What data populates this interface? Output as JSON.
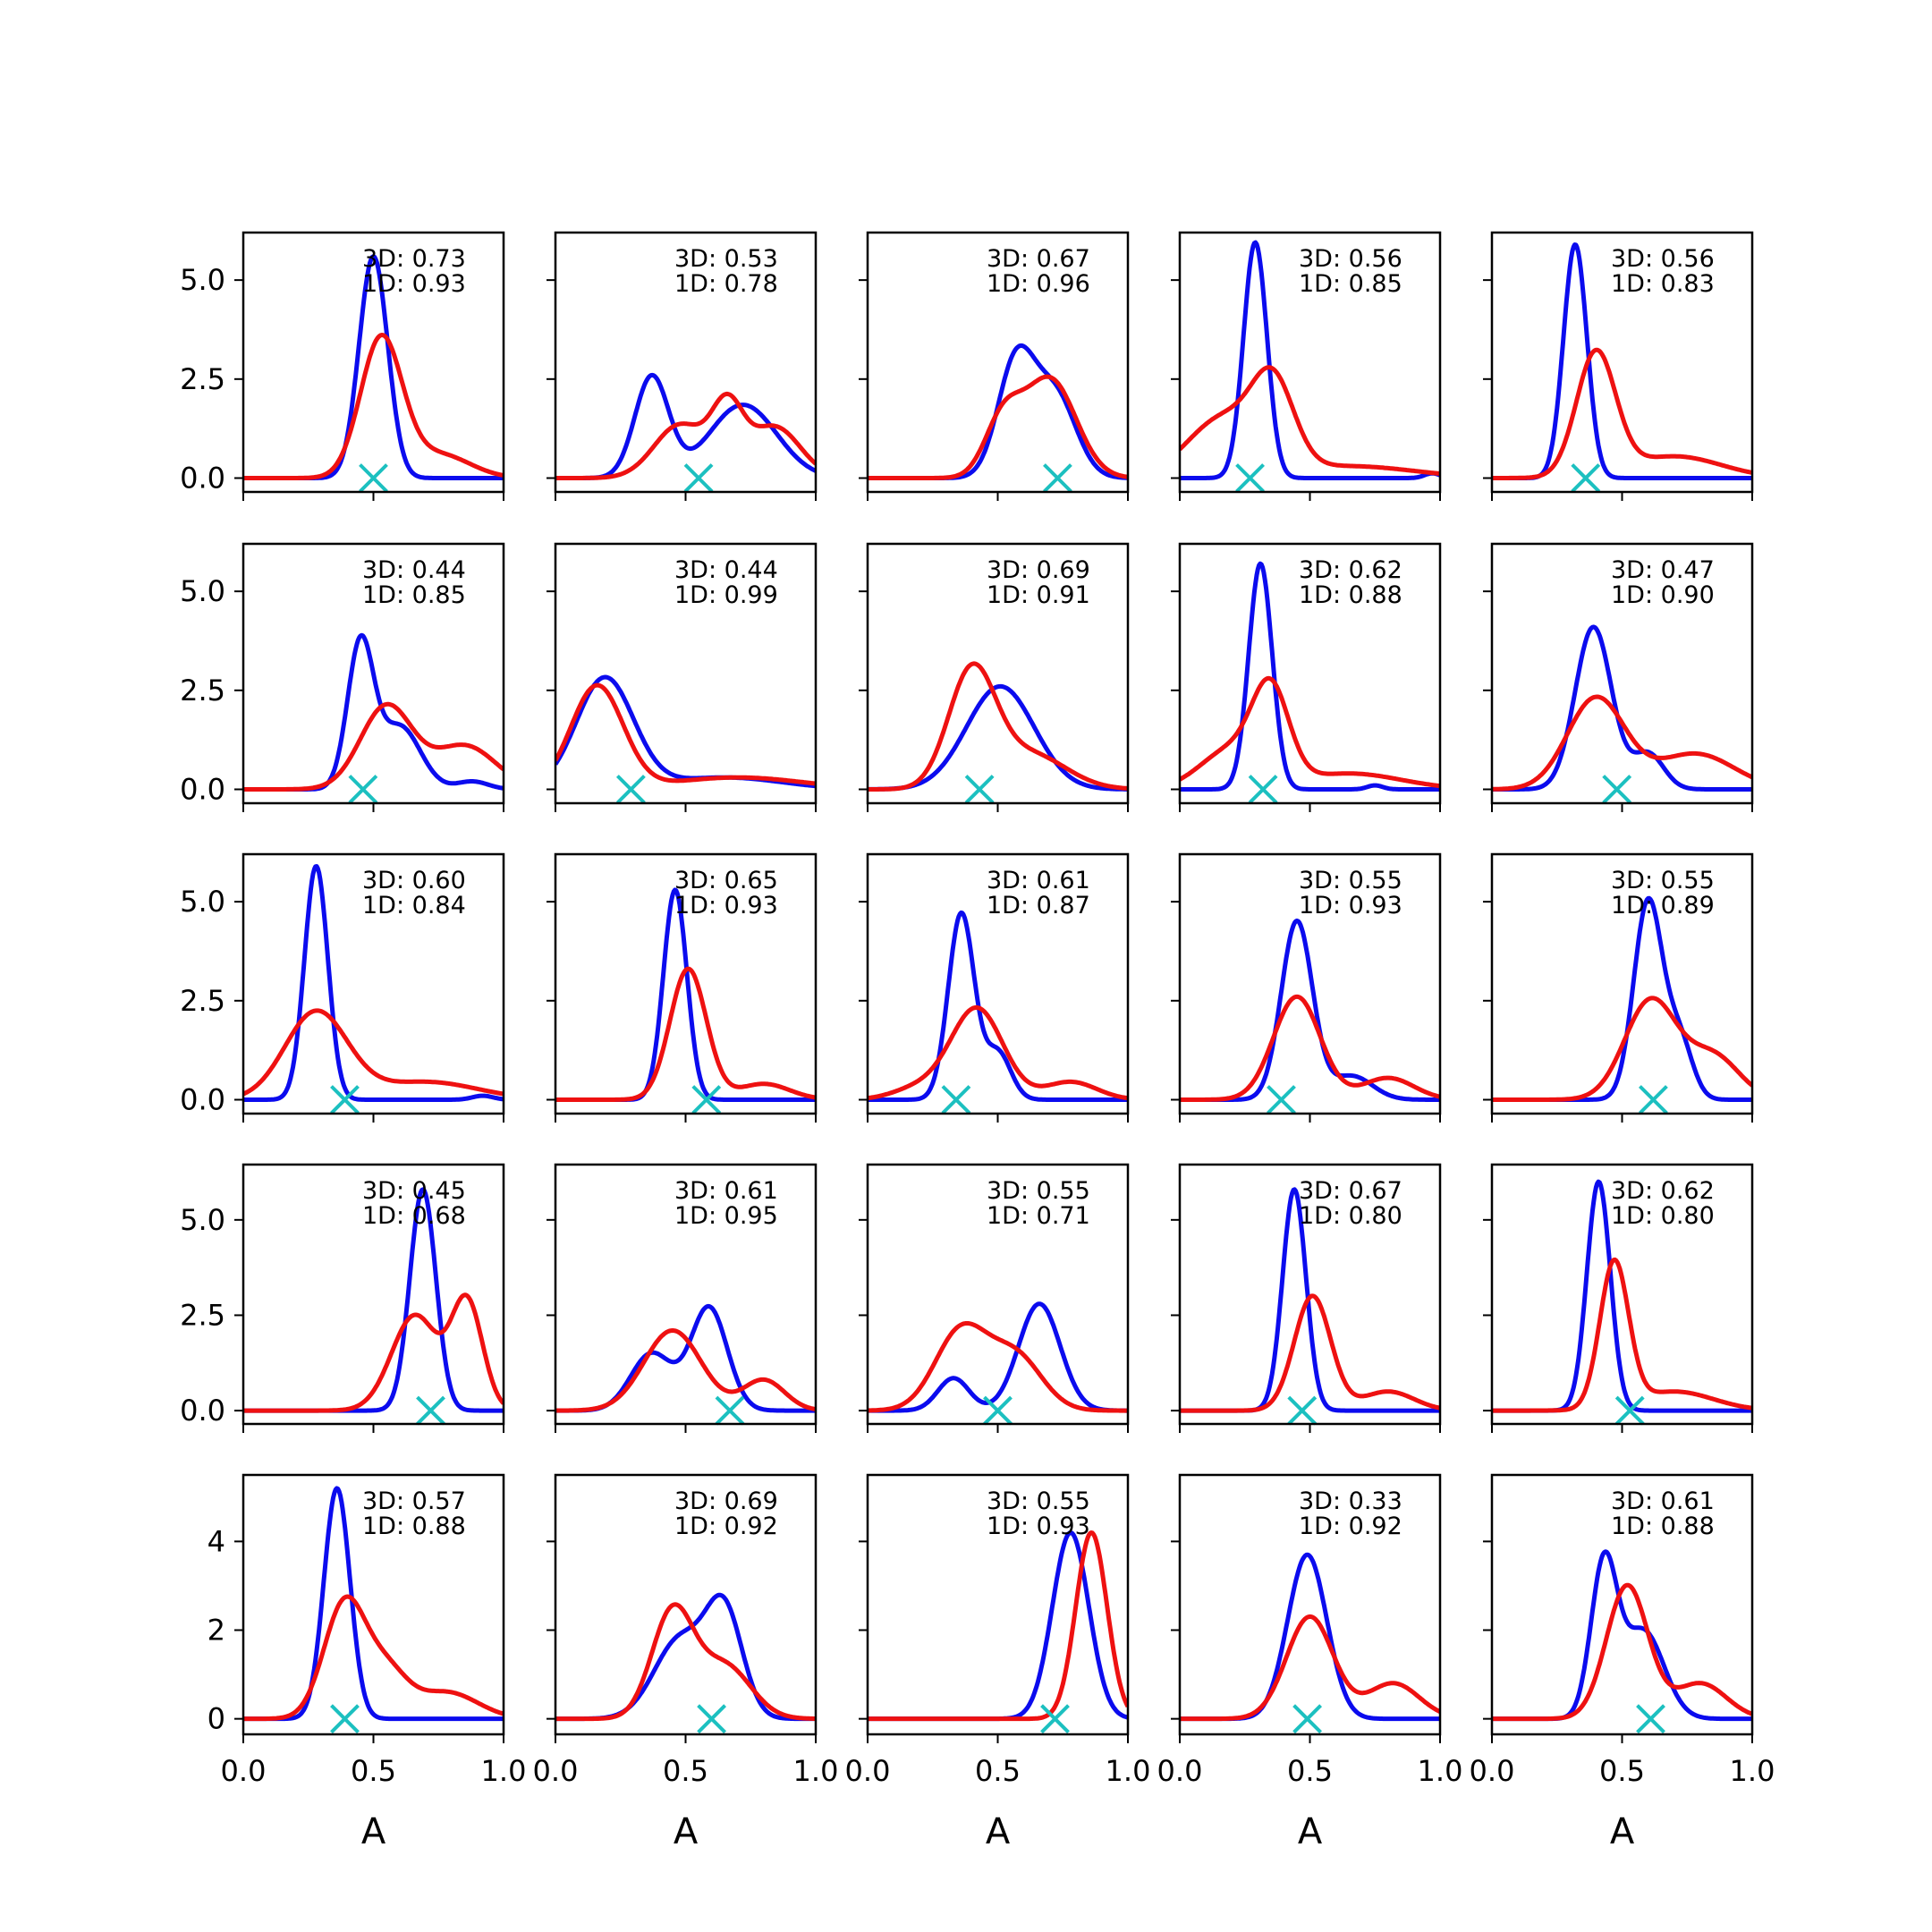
{
  "chart_data": {
    "type": "line",
    "layout": "5x5 grid of small density plots",
    "xlabel": "A",
    "xlim": [
      0.0,
      1.0
    ],
    "xticks": [
      "0.0",
      "0.5",
      "1.0"
    ],
    "row_ylims": [
      [
        -0.35,
        6.2
      ],
      [
        -0.35,
        6.2
      ],
      [
        -0.35,
        6.2
      ],
      [
        -0.35,
        6.45
      ],
      [
        -0.35,
        5.5
      ]
    ],
    "row_yticks": [
      {
        "values": [
          0.0,
          2.5,
          5.0
        ],
        "labels": [
          "0.0",
          "2.5",
          "5.0"
        ]
      },
      {
        "values": [
          0.0,
          2.5,
          5.0
        ],
        "labels": [
          "0.0",
          "2.5",
          "5.0"
        ]
      },
      {
        "values": [
          0.0,
          2.5,
          5.0
        ],
        "labels": [
          "0.0",
          "2.5",
          "5.0"
        ]
      },
      {
        "values": [
          0.0,
          2.5,
          5.0
        ],
        "labels": [
          "0.0",
          "2.5",
          "5.0"
        ]
      },
      {
        "values": [
          0,
          2,
          4
        ],
        "labels": [
          "0",
          "2",
          "4"
        ]
      }
    ],
    "colors": {
      "blue": "#0b0bee",
      "red": "#ee1111",
      "marker": "#1cc0c0"
    },
    "panels": [
      {
        "label3d": "3D: 0.73",
        "label1d": "1D: 0.93",
        "marker": 0.5,
        "blue": {
          "peaks": [
            [
              0.5,
              5.6,
              0.055
            ]
          ]
        },
        "red": {
          "peaks": [
            [
              0.53,
              3.5,
              0.08
            ],
            [
              0.75,
              0.6,
              0.12
            ]
          ]
        }
      },
      {
        "label3d": "3D: 0.53",
        "label1d": "1D: 0.78",
        "marker": 0.55,
        "blue": {
          "peaks": [
            [
              0.37,
              2.55,
              0.065
            ],
            [
              0.72,
              1.85,
              0.13
            ]
          ]
        },
        "red": {
          "peaks": [
            [
              0.48,
              1.35,
              0.1
            ],
            [
              0.66,
              1.6,
              0.06
            ],
            [
              0.84,
              1.3,
              0.1
            ]
          ]
        }
      },
      {
        "label3d": "3D: 0.67",
        "label1d": "1D: 0.96",
        "marker": 0.73,
        "blue": {
          "peaks": [
            [
              0.57,
              2.9,
              0.07
            ],
            [
              0.72,
              2.1,
              0.08
            ]
          ]
        },
        "red": {
          "peaks": [
            [
              0.52,
              1.4,
              0.07
            ],
            [
              0.7,
              2.5,
              0.1
            ]
          ]
        }
      },
      {
        "label3d": "3D: 0.56",
        "label1d": "1D: 0.85",
        "marker": 0.27,
        "blue": {
          "peaks": [
            [
              0.29,
              5.95,
              0.045
            ],
            [
              0.97,
              0.12,
              0.03
            ]
          ]
        },
        "red": {
          "peaks": [
            [
              0.17,
              1.5,
              0.14
            ],
            [
              0.36,
              2.0,
              0.08
            ],
            [
              0.65,
              0.3,
              0.25
            ]
          ]
        }
      },
      {
        "label3d": "3D: 0.56",
        "label1d": "1D: 0.83",
        "marker": 0.36,
        "blue": {
          "peaks": [
            [
              0.32,
              5.9,
              0.045
            ]
          ]
        },
        "red": {
          "peaks": [
            [
              0.4,
              3.1,
              0.075
            ],
            [
              0.7,
              0.55,
              0.18
            ]
          ]
        }
      },
      {
        "label3d": "3D: 0.44",
        "label1d": "1D: 0.85",
        "marker": 0.46,
        "blue": {
          "peaks": [
            [
              0.45,
              3.6,
              0.05
            ],
            [
              0.6,
              1.6,
              0.08
            ],
            [
              0.88,
              0.2,
              0.06
            ]
          ]
        },
        "red": {
          "peaks": [
            [
              0.55,
              2.1,
              0.1
            ],
            [
              0.85,
              1.1,
              0.12
            ]
          ]
        }
      },
      {
        "label3d": "3D: 0.44",
        "label1d": "1D: 0.99",
        "marker": 0.29,
        "blue": {
          "peaks": [
            [
              0.19,
              2.8,
              0.11
            ],
            [
              0.65,
              0.3,
              0.22
            ]
          ]
        },
        "red": {
          "peaks": [
            [
              0.16,
              2.6,
              0.1
            ],
            [
              0.7,
              0.3,
              0.25
            ]
          ]
        }
      },
      {
        "label3d": "3D: 0.69",
        "label1d": "1D: 0.91",
        "marker": 0.43,
        "blue": {
          "peaks": [
            [
              0.51,
              2.6,
              0.13
            ]
          ]
        },
        "red": {
          "peaks": [
            [
              0.4,
              2.9,
              0.09
            ],
            [
              0.62,
              0.9,
              0.14
            ]
          ]
        }
      },
      {
        "label3d": "3D: 0.62",
        "label1d": "1D: 0.88",
        "marker": 0.32,
        "blue": {
          "peaks": [
            [
              0.31,
              5.7,
              0.045
            ],
            [
              0.75,
              0.1,
              0.03
            ]
          ]
        },
        "red": {
          "peaks": [
            [
              0.2,
              1.0,
              0.12
            ],
            [
              0.35,
              2.2,
              0.07
            ],
            [
              0.65,
              0.4,
              0.2
            ]
          ]
        }
      },
      {
        "label3d": "3D: 0.47",
        "label1d": "1D: 0.90",
        "marker": 0.48,
        "blue": {
          "peaks": [
            [
              0.39,
              4.1,
              0.07
            ],
            [
              0.6,
              0.9,
              0.06
            ]
          ]
        },
        "red": {
          "peaks": [
            [
              0.4,
              2.3,
              0.11
            ],
            [
              0.78,
              0.9,
              0.15
            ]
          ]
        }
      },
      {
        "label3d": "3D: 0.60",
        "label1d": "1D: 0.84",
        "marker": 0.39,
        "blue": {
          "peaks": [
            [
              0.28,
              5.9,
              0.045
            ],
            [
              0.92,
              0.1,
              0.04
            ]
          ]
        },
        "red": {
          "peaks": [
            [
              0.28,
              2.2,
              0.12
            ],
            [
              0.7,
              0.45,
              0.2
            ]
          ]
        }
      },
      {
        "label3d": "3D: 0.65",
        "label1d": "1D: 0.93",
        "marker": 0.58,
        "blue": {
          "peaks": [
            [
              0.46,
              5.3,
              0.045
            ]
          ]
        },
        "red": {
          "peaks": [
            [
              0.51,
              3.3,
              0.07
            ],
            [
              0.8,
              0.4,
              0.1
            ]
          ]
        }
      },
      {
        "label3d": "3D: 0.61",
        "label1d": "1D: 0.87",
        "marker": 0.34,
        "blue": {
          "peaks": [
            [
              0.36,
              4.7,
              0.05
            ],
            [
              0.5,
              1.2,
              0.05
            ]
          ]
        },
        "red": {
          "peaks": [
            [
              0.2,
              0.3,
              0.1
            ],
            [
              0.42,
              2.3,
              0.1
            ],
            [
              0.78,
              0.45,
              0.1
            ]
          ]
        }
      },
      {
        "label3d": "3D: 0.55",
        "label1d": "1D: 0.93",
        "marker": 0.39,
        "blue": {
          "peaks": [
            [
              0.45,
              4.5,
              0.06
            ],
            [
              0.66,
              0.6,
              0.08
            ]
          ]
        },
        "red": {
          "peaks": [
            [
              0.45,
              2.6,
              0.09
            ],
            [
              0.8,
              0.55,
              0.1
            ]
          ]
        }
      },
      {
        "label3d": "3D: 0.55",
        "label1d": "1D: 0.89",
        "marker": 0.62,
        "blue": {
          "peaks": [
            [
              0.6,
              5.0,
              0.055
            ],
            [
              0.72,
              1.5,
              0.05
            ]
          ]
        },
        "red": {
          "peaks": [
            [
              0.61,
              2.5,
              0.1
            ],
            [
              0.85,
              1.1,
              0.1
            ]
          ]
        }
      },
      {
        "label3d": "3D: 0.45",
        "label1d": "1D: 0.68",
        "marker": 0.72,
        "blue": {
          "peaks": [
            [
              0.69,
              5.8,
              0.05
            ]
          ]
        },
        "red": {
          "peaks": [
            [
              0.66,
              2.5,
              0.09
            ],
            [
              0.86,
              2.8,
              0.06
            ]
          ]
        }
      },
      {
        "label3d": "3D: 0.61",
        "label1d": "1D: 0.95",
        "marker": 0.67,
        "blue": {
          "peaks": [
            [
              0.37,
              1.5,
              0.08
            ],
            [
              0.59,
              2.7,
              0.07
            ]
          ]
        },
        "red": {
          "peaks": [
            [
              0.45,
              2.1,
              0.11
            ],
            [
              0.8,
              0.8,
              0.08
            ]
          ]
        }
      },
      {
        "label3d": "3D: 0.55",
        "label1d": "1D: 0.71",
        "marker": 0.5,
        "blue": {
          "peaks": [
            [
              0.33,
              0.85,
              0.06
            ],
            [
              0.66,
              2.8,
              0.08
            ]
          ]
        },
        "red": {
          "peaks": [
            [
              0.36,
              2.1,
              0.1
            ],
            [
              0.57,
              1.4,
              0.1
            ]
          ]
        }
      },
      {
        "label3d": "3D: 0.67",
        "label1d": "1D: 0.80",
        "marker": 0.47,
        "blue": {
          "peaks": [
            [
              0.44,
              5.8,
              0.045
            ]
          ]
        },
        "red": {
          "peaks": [
            [
              0.51,
              3.0,
              0.07
            ],
            [
              0.8,
              0.5,
              0.1
            ]
          ]
        }
      },
      {
        "label3d": "3D: 0.62",
        "label1d": "1D: 0.80",
        "marker": 0.53,
        "blue": {
          "peaks": [
            [
              0.41,
              6.0,
              0.045
            ]
          ]
        },
        "red": {
          "peaks": [
            [
              0.47,
              3.8,
              0.055
            ],
            [
              0.7,
              0.5,
              0.15
            ]
          ]
        }
      },
      {
        "label3d": "3D: 0.57",
        "label1d": "1D: 0.88",
        "marker": 0.39,
        "blue": {
          "peaks": [
            [
              0.36,
              5.2,
              0.05
            ]
          ]
        },
        "red": {
          "peaks": [
            [
              0.39,
              2.6,
              0.08
            ],
            [
              0.55,
              1.0,
              0.08
            ],
            [
              0.78,
              0.6,
              0.12
            ]
          ]
        }
      },
      {
        "label3d": "3D: 0.69",
        "label1d": "1D: 0.92",
        "marker": 0.6,
        "blue": {
          "peaks": [
            [
              0.48,
              1.8,
              0.1
            ],
            [
              0.65,
              2.3,
              0.07
            ]
          ]
        },
        "red": {
          "peaks": [
            [
              0.45,
              2.4,
              0.08
            ],
            [
              0.65,
              1.2,
              0.1
            ]
          ]
        }
      },
      {
        "label3d": "3D: 0.55",
        "label1d": "1D: 0.93",
        "marker": 0.72,
        "blue": {
          "peaks": [
            [
              0.78,
              4.2,
              0.07
            ]
          ]
        },
        "red": {
          "peaks": [
            [
              0.86,
              4.2,
              0.06
            ]
          ]
        }
      },
      {
        "label3d": "3D: 0.33",
        "label1d": "1D: 0.92",
        "marker": 0.49,
        "blue": {
          "peaks": [
            [
              0.49,
              3.7,
              0.075
            ]
          ]
        },
        "red": {
          "peaks": [
            [
              0.5,
              2.3,
              0.09
            ],
            [
              0.82,
              0.8,
              0.1
            ]
          ]
        }
      },
      {
        "label3d": "3D: 0.61",
        "label1d": "1D: 0.88",
        "marker": 0.61,
        "blue": {
          "peaks": [
            [
              0.43,
              3.4,
              0.05
            ],
            [
              0.58,
              2.0,
              0.08
            ]
          ]
        },
        "red": {
          "peaks": [
            [
              0.52,
              3.0,
              0.08
            ],
            [
              0.8,
              0.8,
              0.1
            ]
          ]
        }
      }
    ]
  }
}
